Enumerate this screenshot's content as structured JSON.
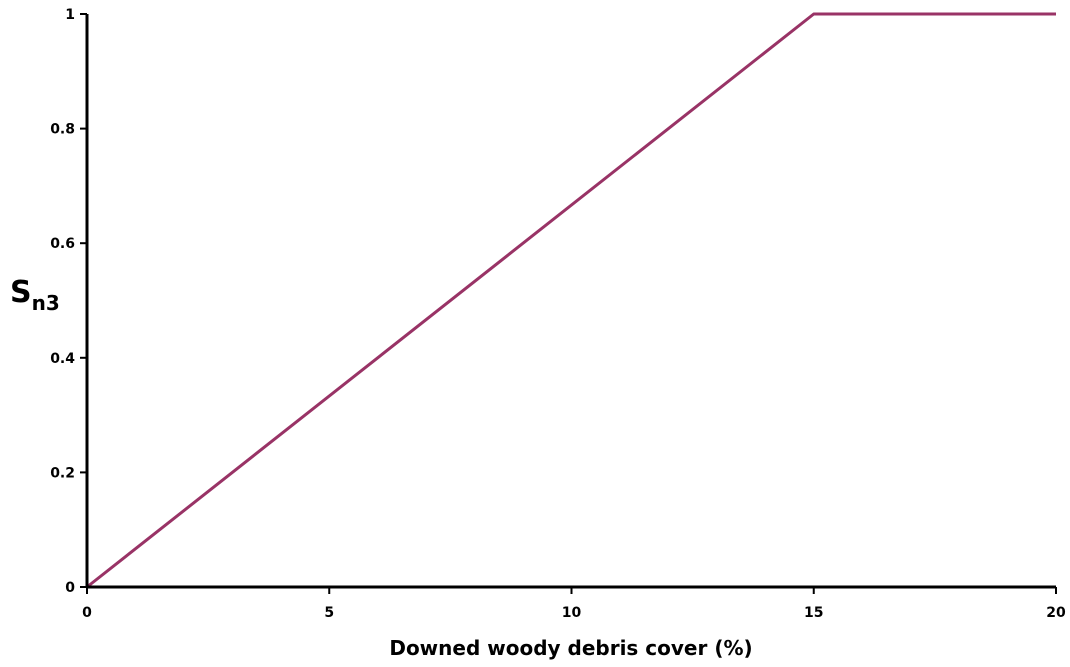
{
  "chart_data": {
    "type": "line",
    "title": "",
    "xlabel": "Downed woody debris cover (%)",
    "ylabel": "Sn3",
    "ylabel_main": "S",
    "ylabel_sub": "n3",
    "xlim": [
      0,
      20
    ],
    "ylim": [
      0,
      1
    ],
    "x_ticks": [
      0,
      5,
      10,
      15,
      20
    ],
    "x_tick_labels": [
      "0",
      "5",
      "10",
      "15",
      "20"
    ],
    "y_ticks": [
      0,
      0.2,
      0.4,
      0.6,
      0.8,
      1
    ],
    "y_tick_labels": [
      "0",
      "0.2",
      "0.4",
      "0.6",
      "0.8",
      "1"
    ],
    "grid": false,
    "legend": "none",
    "series": [
      {
        "x": [
          0,
          15,
          20
        ],
        "y": [
          0,
          1,
          1
        ],
        "color": "#993366"
      }
    ]
  }
}
